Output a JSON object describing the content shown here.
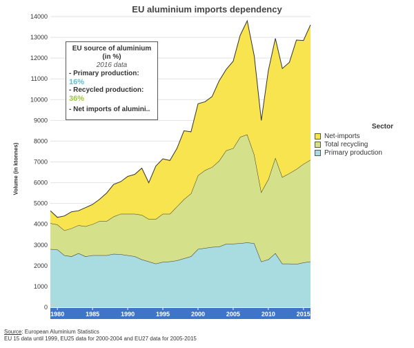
{
  "chart_data": {
    "type": "area",
    "stacked": true,
    "title": "EU aluminium imports dependency",
    "xlabel": "",
    "ylabel": "Volume (in ktonnes)",
    "ylim": [
      0,
      14000
    ],
    "yticks": [
      0,
      1000,
      2000,
      3000,
      4000,
      5000,
      6000,
      7000,
      8000,
      9000,
      10000,
      11000,
      12000,
      13000,
      14000
    ],
    "xticks": [
      1980,
      1985,
      1990,
      1995,
      2000,
      2005,
      2010,
      2015
    ],
    "x": [
      1979,
      1980,
      1981,
      1982,
      1983,
      1984,
      1985,
      1986,
      1987,
      1988,
      1989,
      1990,
      1991,
      1992,
      1993,
      1994,
      1995,
      1996,
      1997,
      1998,
      1999,
      2000,
      2001,
      2002,
      2003,
      2004,
      2005,
      2006,
      2007,
      2008,
      2009,
      2010,
      2011,
      2012,
      2013,
      2014,
      2015,
      2016
    ],
    "legend_title": "Sector",
    "series": [
      {
        "name": "Primary production",
        "color": "#a8dce0",
        "values": [
          2800,
          2780,
          2500,
          2450,
          2600,
          2450,
          2500,
          2500,
          2500,
          2570,
          2550,
          2500,
          2450,
          2300,
          2200,
          2100,
          2180,
          2200,
          2250,
          2350,
          2450,
          2800,
          2850,
          2900,
          2920,
          3050,
          3060,
          3080,
          3120,
          3080,
          2200,
          2300,
          2600,
          2100,
          2100,
          2080,
          2150,
          2200
        ]
      },
      {
        "name": "Total recycling",
        "color": "#d5e08a",
        "values": [
          1250,
          1200,
          1200,
          1350,
          1350,
          1450,
          1500,
          1650,
          1650,
          1800,
          1950,
          2000,
          2050,
          2150,
          2050,
          2150,
          2320,
          2300,
          2600,
          2850,
          3030,
          3550,
          3750,
          3850,
          4130,
          4500,
          4600,
          5120,
          5200,
          4270,
          3350,
          3870,
          4600,
          4170,
          4350,
          4570,
          4750,
          4900
        ]
      },
      {
        "name": "Net-imports",
        "color": "#f7e44e",
        "values": [
          600,
          350,
          700,
          800,
          700,
          900,
          950,
          1050,
          1350,
          1550,
          1550,
          1800,
          1900,
          2250,
          1750,
          2550,
          2650,
          2570,
          2800,
          3300,
          2970,
          3450,
          3300,
          3400,
          3850,
          3900,
          4190,
          4900,
          5480,
          4750,
          3450,
          5230,
          5750,
          5230,
          5350,
          6220,
          5950,
          6500
        ]
      }
    ],
    "info_box": {
      "line1": "EU source of aluminium",
      "line2": "(in %)",
      "subtitle": "2016 data",
      "primary_label": "- Primary production:",
      "primary_value": "16%",
      "recycled_label": "- Recycled production:",
      "recycled_value": "36%",
      "net_label": "- Net imports of alumini.."
    },
    "legend_entries": [
      "Net-imports",
      "Total recycling",
      "Primary production"
    ],
    "source_label": "Source",
    "source_text": ": European Aluminium Statistics",
    "note": "EU 15 data until 1999, EU25 data for 2000-2004 and EU27 data for 2005-2015"
  }
}
